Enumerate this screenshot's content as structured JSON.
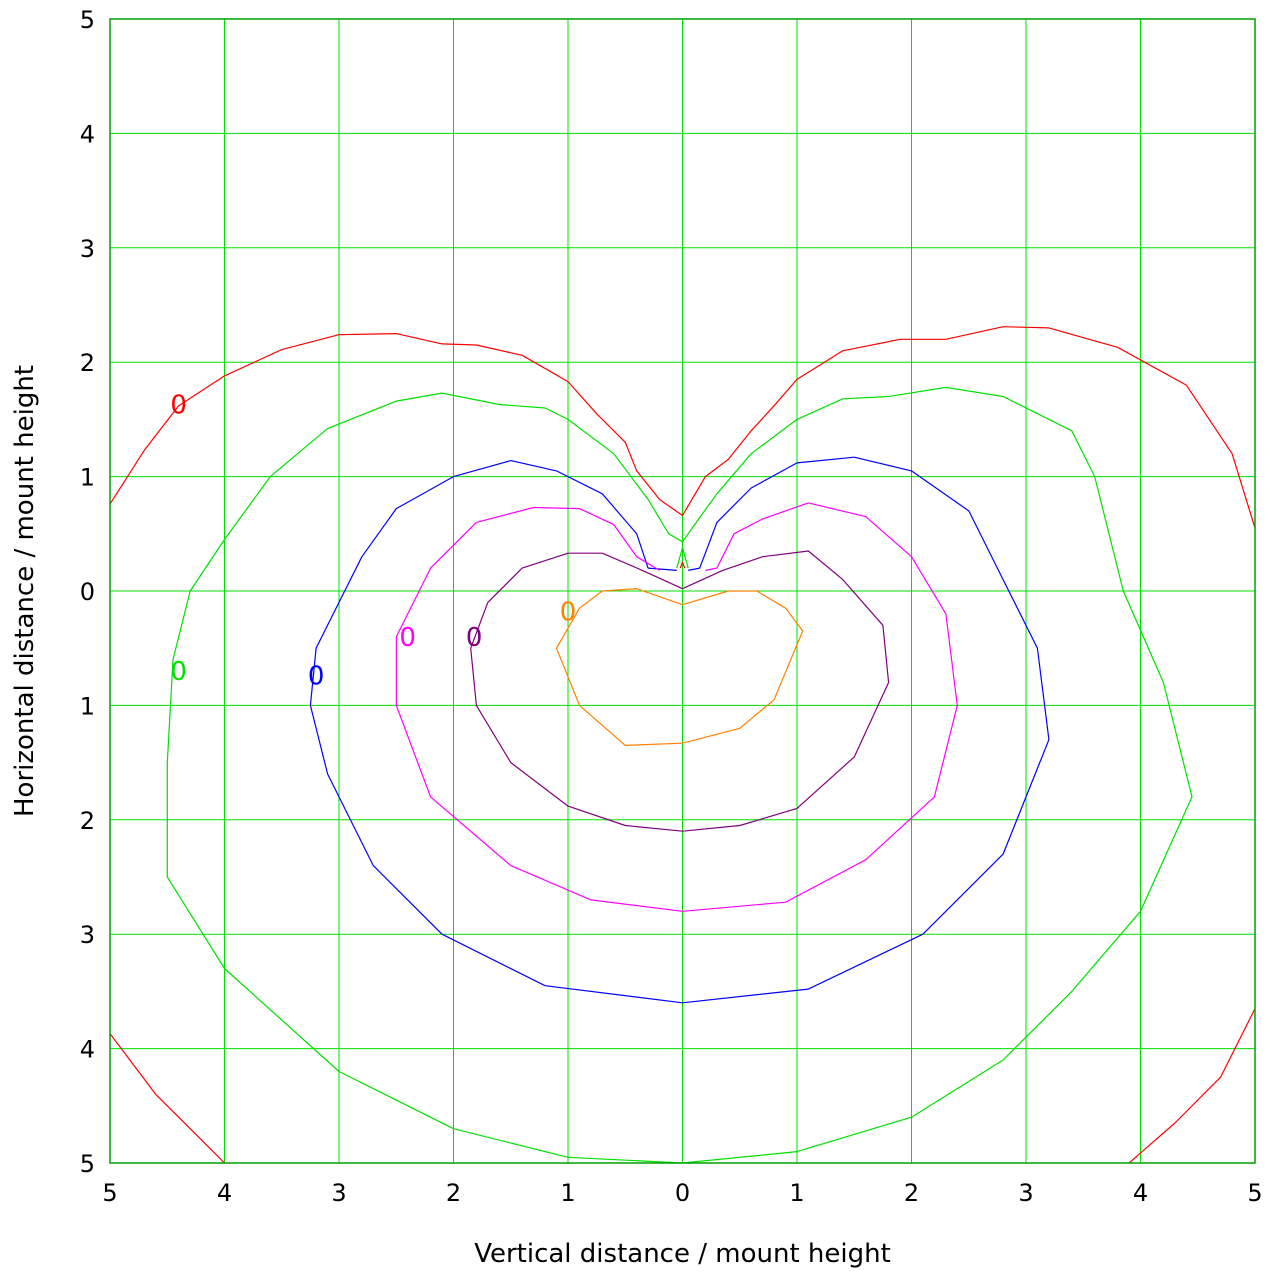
{
  "chart_data": {
    "type": "contour",
    "xlabel": "Vertical distance / mount height",
    "ylabel": "Horizontal distance / mount height",
    "xlim": [
      -5,
      5
    ],
    "ylim": [
      -5,
      5
    ],
    "x_ticks": [
      -5,
      -4,
      -3,
      -2,
      -1,
      0,
      1,
      2,
      3,
      4,
      5
    ],
    "x_tick_labels": [
      "5",
      "4",
      "3",
      "2",
      "1",
      "0",
      "1",
      "2",
      "3",
      "4",
      "5"
    ],
    "y_ticks": [
      5,
      4,
      3,
      2,
      1,
      0,
      -1,
      -2,
      -3,
      -4,
      -5
    ],
    "y_tick_labels": [
      "5",
      "4",
      "3",
      "2",
      "1",
      "0",
      "1",
      "2",
      "3",
      "4",
      "5"
    ],
    "grid": true,
    "grid_color": "#00e000",
    "frame_color": "#00a000",
    "series": [
      {
        "label": "0",
        "color": "#ff0000",
        "label_pos": [
          -4.4,
          1.63
        ],
        "segments": [
          [
            [
              -5,
              0.76
            ],
            [
              -4.7,
              1.23
            ],
            [
              -4.4,
              1.62
            ],
            [
              -4.0,
              1.88
            ],
            [
              -3.5,
              2.11
            ],
            [
              -3.0,
              2.24
            ],
            [
              -2.5,
              2.25
            ],
            [
              -2.1,
              2.16
            ],
            [
              -1.8,
              2.15
            ],
            [
              -1.4,
              2.06
            ],
            [
              -1.0,
              1.83
            ],
            [
              -0.75,
              1.55
            ],
            [
              -0.5,
              1.3
            ],
            [
              -0.4,
              1.05
            ],
            [
              -0.2,
              0.8
            ],
            [
              0,
              0.66
            ],
            [
              0.2,
              1.0
            ],
            [
              0.4,
              1.15
            ],
            [
              0.6,
              1.4
            ],
            [
              0.8,
              1.62
            ],
            [
              1.0,
              1.85
            ],
            [
              1.4,
              2.1
            ],
            [
              1.9,
              2.2
            ],
            [
              2.3,
              2.2
            ],
            [
              2.8,
              2.31
            ],
            [
              3.2,
              2.3
            ],
            [
              3.8,
              2.13
            ],
            [
              4.4,
              1.8
            ],
            [
              4.8,
              1.2
            ],
            [
              5,
              0.55
            ]
          ],
          [
            [
              -5,
              -3.87
            ],
            [
              -4.6,
              -4.4
            ],
            [
              -4.2,
              -4.8
            ],
            [
              -4.0,
              -5
            ]
          ],
          [
            [
              3.9,
              -5
            ],
            [
              4.3,
              -4.65
            ],
            [
              4.7,
              -4.25
            ],
            [
              5,
              -3.65
            ]
          ],
          [
            [
              -0.02,
              0.2
            ],
            [
              0,
              0.25
            ],
            [
              0.02,
              0.2
            ]
          ]
        ]
      },
      {
        "label": "0",
        "color": "#00e000",
        "label_pos": [
          -4.4,
          -0.7
        ],
        "segments": [
          [
            [
              -4.5,
              -1.5
            ],
            [
              -4.45,
              -0.6
            ],
            [
              -4.3,
              0.0
            ],
            [
              -4.0,
              0.45
            ],
            [
              -3.6,
              1.0
            ],
            [
              -3.1,
              1.42
            ],
            [
              -2.5,
              1.66
            ],
            [
              -2.1,
              1.73
            ],
            [
              -1.6,
              1.63
            ],
            [
              -1.2,
              1.6
            ],
            [
              -1.0,
              1.5
            ],
            [
              -0.6,
              1.2
            ],
            [
              -0.3,
              0.8
            ],
            [
              -0.12,
              0.5
            ],
            [
              0,
              0.43
            ],
            [
              0.12,
              0.6
            ],
            [
              0.3,
              0.85
            ],
            [
              0.6,
              1.2
            ],
            [
              1.0,
              1.5
            ],
            [
              1.4,
              1.68
            ],
            [
              1.8,
              1.7
            ],
            [
              2.3,
              1.78
            ],
            [
              2.8,
              1.7
            ],
            [
              3.4,
              1.4
            ],
            [
              3.6,
              1.0
            ],
            [
              3.85,
              0.0
            ],
            [
              4.2,
              -0.8
            ],
            [
              4.45,
              -1.8
            ],
            [
              4.0,
              -2.8
            ],
            [
              3.4,
              -3.5
            ],
            [
              2.8,
              -4.1
            ],
            [
              2.0,
              -4.6
            ],
            [
              1.0,
              -4.9
            ],
            [
              0,
              -5.0
            ],
            [
              -1.0,
              -4.95
            ],
            [
              -2.0,
              -4.7
            ],
            [
              -3.0,
              -4.2
            ],
            [
              -4.0,
              -3.3
            ],
            [
              -4.5,
              -2.5
            ],
            [
              -4.5,
              -1.5
            ]
          ],
          [
            [
              -0.05,
              0.2
            ],
            [
              0,
              0.38
            ],
            [
              0.05,
              0.2
            ]
          ]
        ]
      },
      {
        "label": "0",
        "color": "#0000ff",
        "label_pos": [
          -3.2,
          -0.74
        ],
        "segments": [
          [
            [
              -0.05,
              0.18
            ],
            [
              -0.3,
              0.2
            ],
            [
              -0.4,
              0.5
            ],
            [
              -0.7,
              0.85
            ],
            [
              -1.1,
              1.05
            ],
            [
              -1.5,
              1.14
            ],
            [
              -2.0,
              1.0
            ],
            [
              -2.5,
              0.72
            ],
            [
              -2.8,
              0.3
            ],
            [
              -3.0,
              -0.1
            ],
            [
              -3.2,
              -0.5
            ],
            [
              -3.25,
              -1.0
            ],
            [
              -3.1,
              -1.6
            ],
            [
              -2.7,
              -2.4
            ],
            [
              -2.1,
              -3.0
            ],
            [
              -1.2,
              -3.45
            ],
            [
              0,
              -3.6
            ],
            [
              1.1,
              -3.48
            ],
            [
              2.1,
              -3.0
            ],
            [
              2.8,
              -2.3
            ],
            [
              3.2,
              -1.3
            ],
            [
              3.1,
              -0.5
            ],
            [
              2.8,
              0.1
            ],
            [
              2.5,
              0.7
            ],
            [
              2.0,
              1.05
            ],
            [
              1.5,
              1.17
            ],
            [
              1.0,
              1.12
            ],
            [
              0.6,
              0.9
            ],
            [
              0.3,
              0.6
            ],
            [
              0.15,
              0.2
            ],
            [
              0.05,
              0.18
            ]
          ]
        ]
      },
      {
        "label": "0",
        "color": "#ff00ff",
        "label_pos": [
          -2.4,
          -0.4
        ],
        "segments": [
          [
            [
              -0.2,
              0.18
            ],
            [
              -0.4,
              0.3
            ],
            [
              -0.6,
              0.58
            ],
            [
              -0.9,
              0.72
            ],
            [
              -1.3,
              0.73
            ],
            [
              -1.8,
              0.6
            ],
            [
              -2.2,
              0.2
            ],
            [
              -2.5,
              -0.4
            ],
            [
              -2.5,
              -1.0
            ],
            [
              -2.2,
              -1.8
            ],
            [
              -1.5,
              -2.4
            ],
            [
              -0.8,
              -2.7
            ],
            [
              0,
              -2.8
            ],
            [
              0.9,
              -2.72
            ],
            [
              1.6,
              -2.35
            ],
            [
              2.2,
              -1.8
            ],
            [
              2.4,
              -1.0
            ],
            [
              2.3,
              -0.2
            ],
            [
              2.0,
              0.3
            ],
            [
              1.6,
              0.65
            ],
            [
              1.1,
              0.77
            ],
            [
              0.7,
              0.63
            ],
            [
              0.45,
              0.5
            ],
            [
              0.3,
              0.2
            ],
            [
              0.2,
              0.18
            ]
          ]
        ]
      },
      {
        "label": "0",
        "color": "#800080",
        "label_pos": [
          -1.82,
          -0.4
        ],
        "segments": [
          [
            [
              0,
              0.02
            ],
            [
              -0.35,
              0.18
            ],
            [
              -0.7,
              0.33
            ],
            [
              -1.0,
              0.33
            ],
            [
              -1.4,
              0.2
            ],
            [
              -1.7,
              -0.1
            ],
            [
              -1.85,
              -0.5
            ],
            [
              -1.8,
              -1.0
            ],
            [
              -1.5,
              -1.5
            ],
            [
              -1.0,
              -1.88
            ],
            [
              -0.5,
              -2.05
            ],
            [
              0,
              -2.1
            ],
            [
              0.5,
              -2.05
            ],
            [
              1.0,
              -1.9
            ],
            [
              1.5,
              -1.45
            ],
            [
              1.8,
              -0.8
            ],
            [
              1.75,
              -0.3
            ],
            [
              1.4,
              0.1
            ],
            [
              1.1,
              0.35
            ],
            [
              0.7,
              0.3
            ],
            [
              0.35,
              0.18
            ],
            [
              0,
              0.02
            ]
          ]
        ]
      },
      {
        "label": "0",
        "color": "#ff8000",
        "label_pos": [
          -1.0,
          -0.18
        ],
        "segments": [
          [
            [
              0,
              -0.12
            ],
            [
              -0.4,
              0.02
            ],
            [
              -0.7,
              0.0
            ],
            [
              -0.9,
              -0.15
            ],
            [
              -1.1,
              -0.5
            ],
            [
              -0.9,
              -1.0
            ],
            [
              -0.5,
              -1.35
            ],
            [
              0,
              -1.33
            ],
            [
              0.5,
              -1.2
            ],
            [
              0.8,
              -0.95
            ],
            [
              1.05,
              -0.35
            ],
            [
              0.9,
              -0.15
            ],
            [
              0.65,
              0.0
            ],
            [
              0.4,
              0.0
            ],
            [
              0,
              -0.12
            ]
          ]
        ]
      }
    ]
  }
}
